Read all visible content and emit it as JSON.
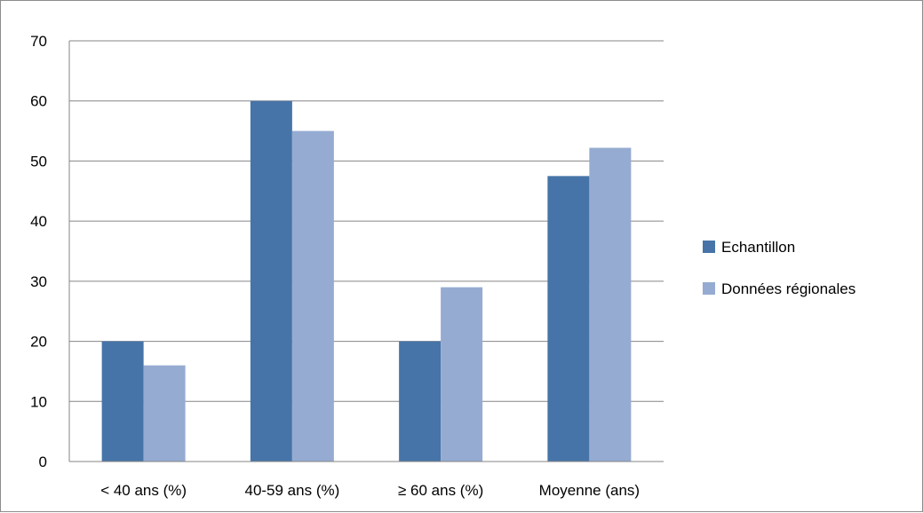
{
  "chart_data": {
    "type": "bar",
    "title": "",
    "xlabel": "",
    "ylabel": "",
    "categories": [
      "< 40 ans (%)",
      "40-59 ans (%)",
      "≥ 60 ans (%)",
      "Moyenne (ans)"
    ],
    "series": [
      {
        "name": "Echantillon",
        "color": "#4674a8",
        "values": [
          20,
          60,
          20,
          47.5
        ]
      },
      {
        "name": "Données régionales",
        "color": "#95abd1",
        "values": [
          16,
          55,
          29,
          52.2
        ]
      }
    ],
    "ylim": [
      0,
      70
    ],
    "yticks": [
      0,
      10,
      20,
      30,
      40,
      50,
      60,
      70
    ],
    "grid": true,
    "legend_position": "right"
  }
}
